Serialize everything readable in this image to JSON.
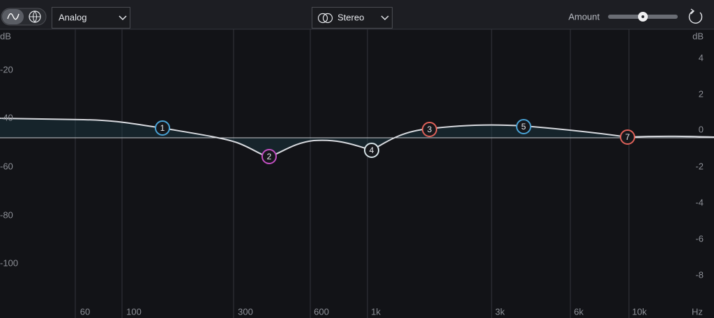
{
  "toolbar": {
    "mode_dropdown": "Analog",
    "channel_dropdown": "Stereo",
    "amount_label": "Amount"
  },
  "left_axis": {
    "unit": "dB",
    "labels": [
      "-20",
      "-40",
      "-60",
      "-80",
      "-100"
    ]
  },
  "right_axis": {
    "unit": "dB",
    "labels": [
      "4",
      "2",
      "0",
      "-2",
      "-4",
      "-6",
      "-8"
    ]
  },
  "frequency_axis": {
    "labels": [
      "60",
      "100",
      "300",
      "600",
      "1k",
      "3k",
      "6k",
      "10k"
    ],
    "unit": "Hz"
  },
  "nodes": [
    {
      "label": "1",
      "color": "#4aa3d6"
    },
    {
      "label": "2",
      "color": "#c24fc2"
    },
    {
      "label": "3",
      "color": "#e0625a"
    },
    {
      "label": "4",
      "color": "#d5e2e6"
    },
    {
      "label": "5",
      "color": "#4aa3d6"
    },
    {
      "label": "7",
      "color": "#e0625a"
    }
  ]
}
